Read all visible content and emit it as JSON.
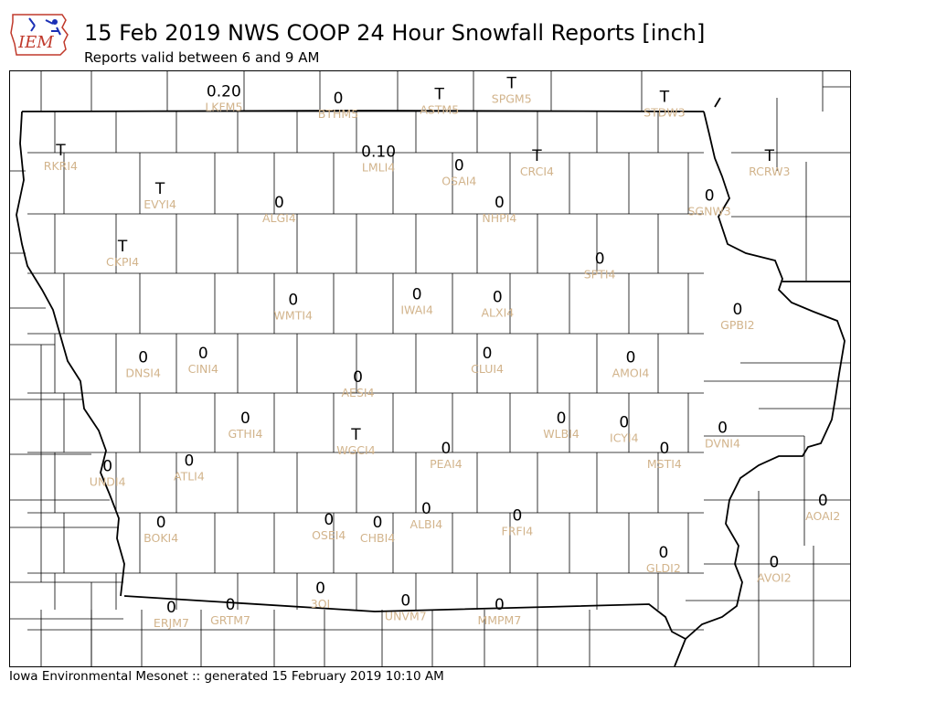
{
  "header": {
    "logo_text": "IEM",
    "title": "15 Feb 2019 NWS COOP 24 Hour Snowfall Reports [inch]",
    "subtitle": "Reports valid between 6 and 9 AM"
  },
  "footer": {
    "text": "Iowa Environmental Mesonet :: generated 15 February 2019 10:10 AM"
  },
  "colors": {
    "station_label": "#d2b48c",
    "value_label": "#000000",
    "border": "#000000",
    "logo_red": "#c0392b",
    "logo_blue": "#1a2fb5"
  },
  "stations": [
    {
      "id": "LKFM5",
      "value": "0.20",
      "lon": -94.47,
      "lat": 43.61
    },
    {
      "id": "BTHM5",
      "value": "0",
      "lon": -93.25,
      "lat": 43.56
    },
    {
      "id": "ASTM5",
      "value": "T",
      "lon": -92.17,
      "lat": 43.59
    },
    {
      "id": "SPGM5",
      "value": "T",
      "lon": -91.4,
      "lat": 43.67
    },
    {
      "id": "STDW3",
      "value": "T",
      "lon": -89.77,
      "lat": 43.57
    },
    {
      "id": "RKRI4",
      "value": "T",
      "lon": -96.21,
      "lat": 43.18
    },
    {
      "id": "LMLI4",
      "value": "0.10",
      "lon": -92.82,
      "lat": 43.17
    },
    {
      "id": "OSAI4",
      "value": "0",
      "lon": -91.96,
      "lat": 43.07
    },
    {
      "id": "CRCI4",
      "value": "T",
      "lon": -91.13,
      "lat": 43.14
    },
    {
      "id": "RCRW3",
      "value": "T",
      "lon": -88.65,
      "lat": 43.14
    },
    {
      "id": "EVYI4",
      "value": "T",
      "lon": -95.15,
      "lat": 42.9
    },
    {
      "id": "SGNW3",
      "value": "0",
      "lon": -89.29,
      "lat": 42.85
    },
    {
      "id": "ALGI4",
      "value": "0",
      "lon": -93.88,
      "lat": 42.8
    },
    {
      "id": "NHPI4",
      "value": "0",
      "lon": -91.53,
      "lat": 42.8
    },
    {
      "id": "CKPI4",
      "value": "T",
      "lon": -95.55,
      "lat": 42.48
    },
    {
      "id": "SPTI4",
      "value": "0",
      "lon": -90.46,
      "lat": 42.39
    },
    {
      "id": "WMTI4",
      "value": "0",
      "lon": -93.73,
      "lat": 42.09
    },
    {
      "id": "IWAI4",
      "value": "0",
      "lon": -92.41,
      "lat": 42.13
    },
    {
      "id": "ALXI4",
      "value": "0",
      "lon": -91.55,
      "lat": 42.11
    },
    {
      "id": "GPBI2",
      "value": "0",
      "lon": -88.99,
      "lat": 42.02
    },
    {
      "id": "DNSI4",
      "value": "0",
      "lon": -95.33,
      "lat": 41.67
    },
    {
      "id": "CINI4",
      "value": "0",
      "lon": -94.69,
      "lat": 41.7
    },
    {
      "id": "CLUI4",
      "value": "0",
      "lon": -91.66,
      "lat": 41.7
    },
    {
      "id": "AMOI4",
      "value": "0",
      "lon": -90.13,
      "lat": 41.67
    },
    {
      "id": "AESI4",
      "value": "0",
      "lon": -93.04,
      "lat": 41.53
    },
    {
      "id": "GTHI4",
      "value": "0",
      "lon": -94.24,
      "lat": 41.23
    },
    {
      "id": "WLBI4",
      "value": "0",
      "lon": -90.87,
      "lat": 41.23
    },
    {
      "id": "ICYI4",
      "value": "0",
      "lon": -90.2,
      "lat": 41.2
    },
    {
      "id": "DVNI4",
      "value": "0",
      "lon": -89.15,
      "lat": 41.16
    },
    {
      "id": "WGCI4",
      "value": "T",
      "lon": -93.06,
      "lat": 41.11
    },
    {
      "id": "PEAI4",
      "value": "0",
      "lon": -92.1,
      "lat": 41.01
    },
    {
      "id": "MSTI4",
      "value": "0",
      "lon": -89.77,
      "lat": 41.01
    },
    {
      "id": "UNDI4",
      "value": "0",
      "lon": -95.71,
      "lat": 40.88
    },
    {
      "id": "ATLI4",
      "value": "0",
      "lon": -94.84,
      "lat": 40.92
    },
    {
      "id": "AOAI2",
      "value": "0",
      "lon": -88.08,
      "lat": 40.63
    },
    {
      "id": "OSEI4",
      "value": "0",
      "lon": -93.35,
      "lat": 40.49
    },
    {
      "id": "CHBI4",
      "value": "0",
      "lon": -92.83,
      "lat": 40.47
    },
    {
      "id": "ALBI4",
      "value": "0",
      "lon": -92.31,
      "lat": 40.57
    },
    {
      "id": "FRFI4",
      "value": "0",
      "lon": -91.34,
      "lat": 40.52
    },
    {
      "id": "BOKI4",
      "value": "0",
      "lon": -95.14,
      "lat": 40.47
    },
    {
      "id": "GLDI2",
      "value": "0",
      "lon": -89.78,
      "lat": 40.25
    },
    {
      "id": "AVOI2",
      "value": "0",
      "lon": -88.6,
      "lat": 40.18
    },
    {
      "id": "3OI",
      "value": "0",
      "lon": -93.44,
      "lat": 39.99
    },
    {
      "id": "ERJM7",
      "value": "0",
      "lon": -95.03,
      "lat": 39.85
    },
    {
      "id": "GRTM7",
      "value": "0",
      "lon": -94.4,
      "lat": 39.87
    },
    {
      "id": "UNVM7",
      "value": "0",
      "lon": -92.53,
      "lat": 39.9
    },
    {
      "id": "MMPM7",
      "value": "0",
      "lon": -91.53,
      "lat": 39.87
    }
  ]
}
